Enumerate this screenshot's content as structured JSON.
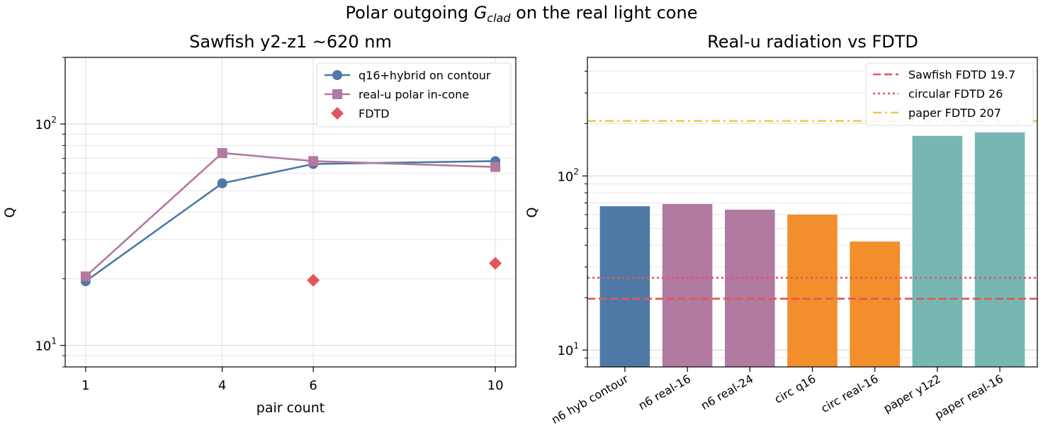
{
  "figure": {
    "suptitle_prefix": "Polar outgoing ",
    "suptitle_symbol": "G",
    "suptitle_subscript": "clad",
    "suptitle_suffix": " on the real light cone"
  },
  "chart_data": [
    {
      "type": "line",
      "title": "Sawfish y2-z1 ~620 nm",
      "xlabel": "pair count",
      "ylabel": "Q",
      "yscale": "log",
      "xlim": [
        0.55,
        10.45
      ],
      "ylim": [
        8,
        200
      ],
      "x_ticks": [
        1,
        4,
        6,
        10
      ],
      "y_ticks": [
        {
          "value": 10,
          "base": "10",
          "exp": "1"
        },
        {
          "value": 100,
          "base": "10",
          "exp": "2"
        }
      ],
      "grid": true,
      "legend_position": "top-right",
      "series": [
        {
          "name": "q16+hybrid on contour",
          "marker": "circle",
          "color": "#4e79a7",
          "line": true,
          "x": [
            1,
            4,
            6,
            10
          ],
          "y": [
            19.5,
            54,
            66,
            68
          ]
        },
        {
          "name": "real-u polar in-cone",
          "marker": "square",
          "color": "#b07aa1",
          "line": true,
          "x": [
            1,
            4,
            6,
            10
          ],
          "y": [
            20.5,
            74,
            68,
            64
          ]
        },
        {
          "name": "FDTD",
          "marker": "diamond",
          "color": "#e15759",
          "line": false,
          "x": [
            6,
            10
          ],
          "y": [
            19.7,
            23.5
          ]
        }
      ]
    },
    {
      "type": "bar",
      "title": "Real-u radiation vs FDTD",
      "ylabel": "Q",
      "yscale": "log",
      "ylim": [
        8,
        480
      ],
      "y_ticks": [
        {
          "value": 10,
          "base": "10",
          "exp": "1"
        },
        {
          "value": 100,
          "base": "10",
          "exp": "2"
        }
      ],
      "grid": true,
      "legend_position": "top-right",
      "categories": [
        "n6 hyb contour",
        "n6 real-16",
        "n6 real-24",
        "circ q16",
        "circ real-16",
        "paper y1z2",
        "paper real-16"
      ],
      "values": [
        67,
        69,
        64,
        60,
        42,
        170,
        178
      ],
      "bar_colors": [
        "#4e79a7",
        "#b07aa1",
        "#b07aa1",
        "#f28e2b",
        "#f28e2b",
        "#76b7b2",
        "#76b7b2"
      ],
      "reference_lines": [
        {
          "name": "Sawfish FDTD 19.7",
          "value": 19.7,
          "color": "#e15759",
          "style": "dashed"
        },
        {
          "name": "circular FDTD 26",
          "value": 26,
          "color": "#e15759",
          "style": "dotted"
        },
        {
          "name": "paper FDTD 207",
          "value": 207,
          "color": "#edc948",
          "style": "dashdot"
        }
      ]
    }
  ]
}
